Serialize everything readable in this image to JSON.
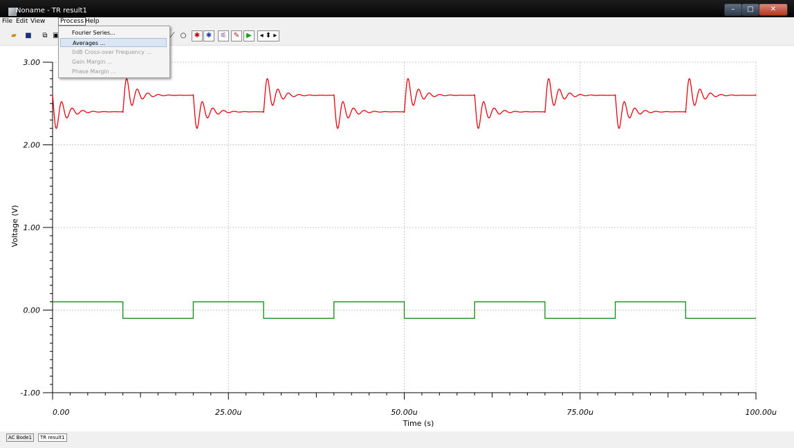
{
  "window": {
    "title": "Noname - TR result1",
    "controls": {
      "minimize": "–",
      "maximize": "□",
      "close": "✕"
    }
  },
  "menubar": {
    "items": [
      "File",
      "Edit",
      "View",
      "Process",
      "Help"
    ],
    "open_menu": "Process"
  },
  "process_menu": {
    "items": [
      {
        "label": "Fourier Series...",
        "enabled": true
      },
      {
        "label": "Averages ...",
        "enabled": true,
        "highlighted": true
      },
      {
        "label": "0dB Cross-over Frequency ...",
        "enabled": false
      },
      {
        "label": "Gain Margin ...",
        "enabled": false
      },
      {
        "label": "Phase Margin ...",
        "enabled": false
      }
    ]
  },
  "toolbar": {
    "icons": [
      "open-icon",
      "save-icon",
      "copy-icon",
      "print-icon",
      "line-tool-icon",
      "circle-tool-icon",
      "cursor-a-icon",
      "cursor-b-icon",
      "zoom-icon",
      "pen-icon",
      "run-icon",
      "pan-icon"
    ]
  },
  "chart_data": {
    "type": "line",
    "xlabel": "Time (s)",
    "ylabel": "Voltage (V)",
    "xlim": [
      0,
      100
    ],
    "ylim": [
      -1.0,
      3.0
    ],
    "x_ticks": [
      {
        "value": 0,
        "label": "0.00"
      },
      {
        "value": 25,
        "label": "25.00u"
      },
      {
        "value": 50,
        "label": "50.00u"
      },
      {
        "value": 75,
        "label": "75.00u"
      },
      {
        "value": 100,
        "label": "100.00u"
      }
    ],
    "y_ticks": [
      {
        "value": 3.0,
        "label": "3.00"
      },
      {
        "value": 2.0,
        "label": "2.00"
      },
      {
        "value": 1.0,
        "label": "1.00"
      },
      {
        "value": 0.0,
        "label": "0.00"
      },
      {
        "value": -1.0,
        "label": "-1.00"
      }
    ],
    "grid": true,
    "series": [
      {
        "color": "#e8000b",
        "step_period": 10,
        "levels": [
          2.4,
          2.6
        ],
        "first_level": 2.4,
        "overshoot": 0.2,
        "ringing_period": 1.5,
        "damping": 1.5
      },
      {
        "color": "#138a13",
        "step_period": 10,
        "levels": [
          0.1,
          -0.1
        ],
        "first_level": 0.1
      }
    ]
  },
  "tabs": [
    "AC Bode1",
    "TR result1"
  ],
  "active_tab": "TR result1"
}
